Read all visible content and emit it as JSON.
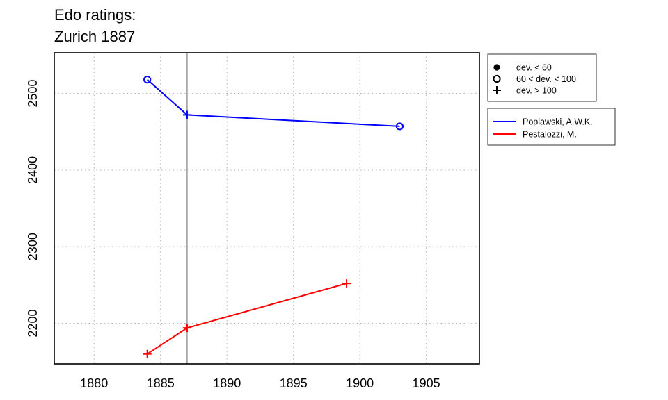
{
  "chart_data": {
    "type": "line",
    "title": [
      "Edo ratings:",
      "Zurich 1887"
    ],
    "xlim": [
      1877,
      1909
    ],
    "ylim": [
      2147,
      2553
    ],
    "x_ticks": [
      1880,
      1885,
      1890,
      1895,
      1900,
      1905
    ],
    "y_ticks": [
      2200,
      2300,
      2400,
      2500
    ],
    "grid": true,
    "reference_line_x": 1887,
    "series": [
      {
        "name": "Poplawski, A.W.K.",
        "color": "#0000ff",
        "points": [
          {
            "x": 1884,
            "y": 2518,
            "marker": "open-circle"
          },
          {
            "x": 1887,
            "y": 2472,
            "marker": "plus"
          },
          {
            "x": 1903,
            "y": 2457,
            "marker": "open-circle"
          }
        ]
      },
      {
        "name": "Pestalozzi, M.",
        "color": "#ff0000",
        "points": [
          {
            "x": 1884,
            "y": 2160,
            "marker": "plus"
          },
          {
            "x": 1887,
            "y": 2194,
            "marker": "plus"
          },
          {
            "x": 1899,
            "y": 2252,
            "marker": "plus"
          }
        ]
      }
    ],
    "marker_legend": [
      {
        "marker": "filled-circle",
        "label": "dev. < 60"
      },
      {
        "marker": "open-circle",
        "label": "60 < dev. < 100"
      },
      {
        "marker": "plus",
        "label": "dev. > 100"
      }
    ],
    "legend_placement": "outside-right"
  }
}
